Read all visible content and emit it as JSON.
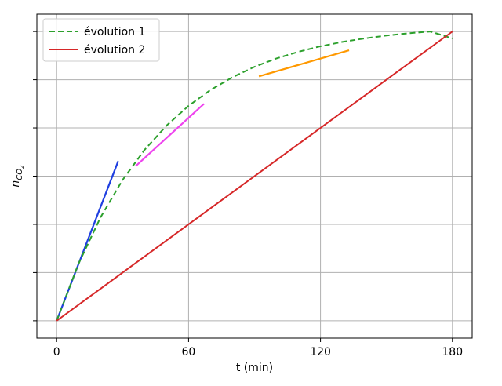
{
  "chart_data": {
    "type": "line",
    "xlabel": "t (min)",
    "ylabel": "n",
    "ylabel_subscript": "CO",
    "ylabel_subsub": "2",
    "xlim": [
      -9,
      189
    ],
    "ylim": [
      -0.06,
      1.06
    ],
    "x_ticks": [
      0,
      60,
      120,
      180
    ],
    "x_tick_labels": [
      "0",
      "60",
      "120",
      "180"
    ],
    "y_ticks": [
      0,
      0.1667,
      0.3333,
      0.5,
      0.6667,
      0.8333,
      1.0
    ],
    "y_tick_labels_visible": false,
    "grid": true,
    "legend_position": "top-left",
    "series": [
      {
        "name": "évolution 1",
        "style": "dashed",
        "color": "#2ca02c",
        "model": "exponential_saturation",
        "x": [
          0,
          10,
          20,
          30,
          40,
          50,
          60,
          70,
          80,
          90,
          100,
          110,
          120,
          130,
          140,
          150,
          160,
          170,
          180
        ],
        "y": [
          0,
          0.198,
          0.358,
          0.487,
          0.591,
          0.675,
          0.743,
          0.798,
          0.842,
          0.878,
          0.907,
          0.93,
          0.949,
          0.964,
          0.976,
          0.986,
          0.994,
          1.0,
          0.976
        ]
      },
      {
        "name": "évolution 2",
        "style": "solid",
        "color": "#d62728",
        "x": [
          0,
          180
        ],
        "y": [
          0,
          1.0
        ]
      }
    ],
    "tangents": [
      {
        "name": "",
        "color": "#1f3fe0",
        "x": [
          0,
          28
        ],
        "y": [
          0,
          0.552
        ]
      },
      {
        "name": "",
        "color": "#ee44ee",
        "x": [
          36,
          67
        ],
        "y": [
          0.535,
          0.75
        ]
      },
      {
        "name": "",
        "color": "#ff9900",
        "x": [
          92,
          133
        ],
        "y": [
          0.845,
          0.935
        ]
      }
    ]
  }
}
